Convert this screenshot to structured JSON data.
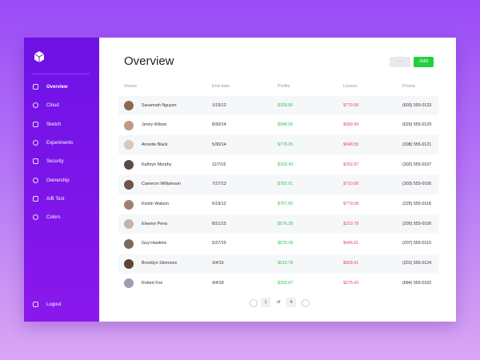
{
  "sidebar": {
    "nav": [
      "Overview",
      "Cloud",
      "Sketch",
      "Experiments",
      "Security",
      "Ownership",
      "A/B Test",
      "Colors"
    ],
    "logout": "Logout"
  },
  "header": {
    "title": "Overview",
    "more_button": "···",
    "add_button": "Add"
  },
  "table": {
    "columns": [
      "Owner",
      "End date",
      "Profits",
      "Losses",
      "Phone"
    ],
    "rows": [
      [
        "Savannah Nguyen",
        "1/15/12",
        "$328.85",
        "$779.58",
        "(603) 555-0123"
      ],
      [
        "Jenny Wilson",
        "8/30/14",
        "$948.55",
        "$589.99",
        "(629) 555-0129"
      ],
      [
        "Annette Black",
        "5/30/14",
        "$778.35",
        "$948.55",
        "(308) 555-0121"
      ],
      [
        "Kathryn Murphy",
        "11/7/16",
        "$169.43",
        "$202.87",
        "(302) 555-0107"
      ],
      [
        "Cameron Williamson",
        "7/27/13",
        "$782.01",
        "$710.68",
        "(303) 555-0105"
      ],
      [
        "Kristin Watson",
        "5/19/12",
        "$767.50",
        "$779.58",
        "(225) 555-0118"
      ],
      [
        "Eleanor Pena",
        "8/21/15",
        "$576.28",
        "$219.78",
        "(205) 555-0100"
      ],
      [
        "Guy Hawkins",
        "5/27/15",
        "$576.28",
        "$446.61",
        "(207) 555-0119"
      ],
      [
        "Brooklyn Simmons",
        "3/4/16",
        "$219.78",
        "$928.41",
        "(201) 555-0124"
      ],
      [
        "Robert Fox",
        "4/4/18",
        "$202.87",
        "$275.43",
        "(684) 555-0102"
      ]
    ]
  },
  "pagination": {
    "current": "1",
    "of": "of",
    "total": "4"
  }
}
